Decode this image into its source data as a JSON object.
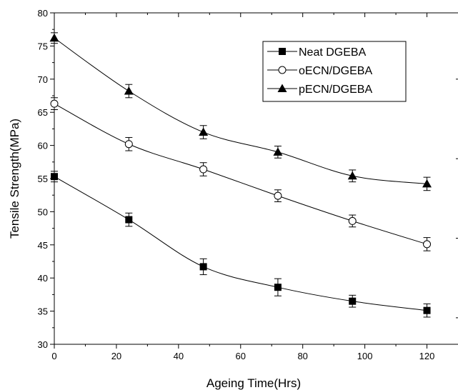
{
  "chart_data": {
    "type": "line",
    "title": "",
    "xlabel": "Ageing Time(Hrs)",
    "ylabel": "Tensile Strength(MPa)",
    "xlim": [
      0,
      130
    ],
    "ylim": [
      30,
      80
    ],
    "xticks": [
      0,
      20,
      40,
      60,
      80,
      100,
      120
    ],
    "yticks": [
      30,
      35,
      40,
      45,
      50,
      55,
      60,
      65,
      70,
      75,
      80
    ],
    "x": [
      0,
      24,
      48,
      72,
      96,
      120
    ],
    "grid": false,
    "legend_position": "top-right",
    "series": [
      {
        "name": "Neat DGEBA",
        "marker": "filled-square",
        "values": [
          55.3,
          48.8,
          41.7,
          38.6,
          36.5,
          35.1
        ],
        "errors": [
          0.8,
          1.0,
          1.2,
          1.3,
          0.9,
          1.0
        ]
      },
      {
        "name": "oECN/DGEBA",
        "marker": "open-circle",
        "values": [
          66.3,
          60.2,
          56.4,
          52.4,
          48.6,
          45.1
        ],
        "errors": [
          0.9,
          1.0,
          1.0,
          0.9,
          0.9,
          1.0
        ]
      },
      {
        "name": "pECN/DGEBA",
        "marker": "filled-triangle",
        "values": [
          76.2,
          68.2,
          62.0,
          59.0,
          55.4,
          54.2
        ],
        "errors": [
          0.8,
          1.0,
          1.0,
          0.9,
          0.9,
          1.0
        ]
      }
    ]
  }
}
